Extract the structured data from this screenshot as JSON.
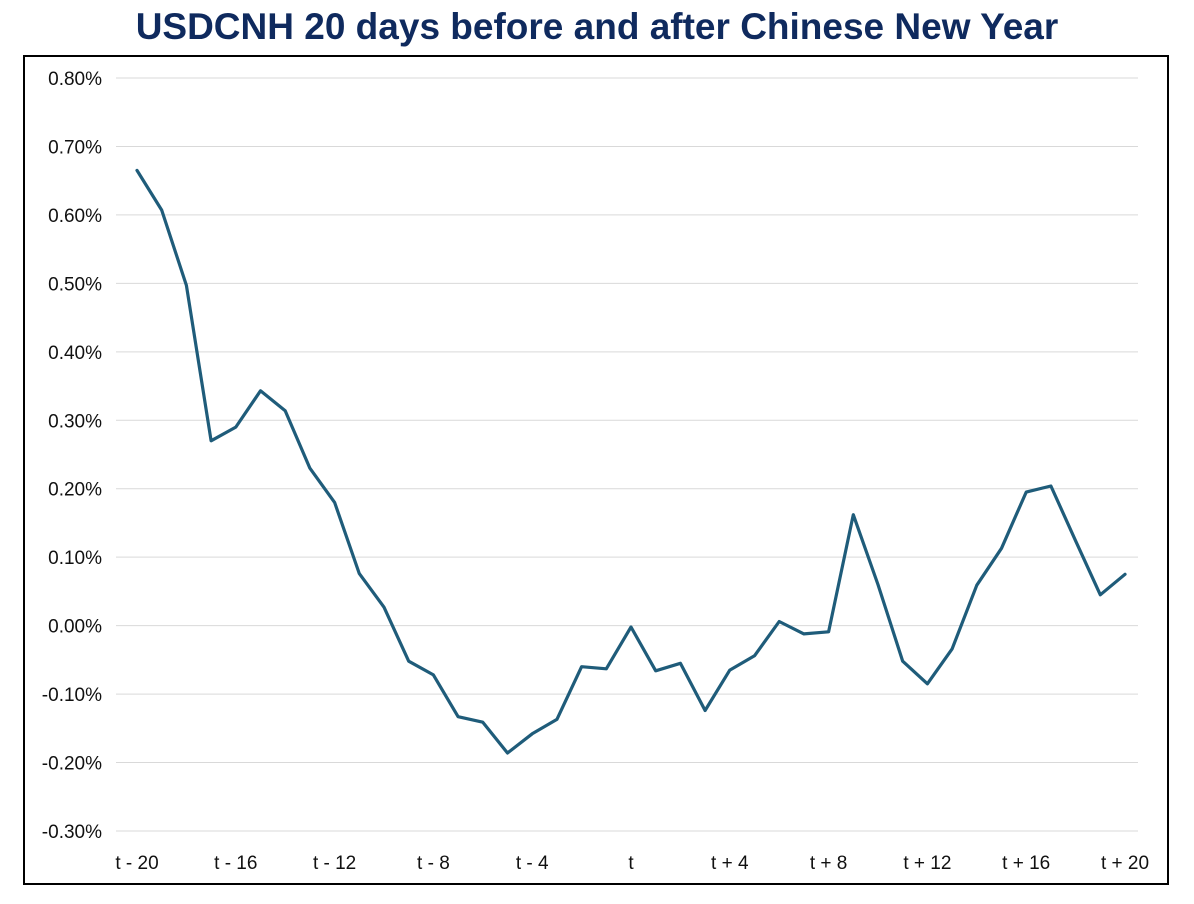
{
  "chart_data": {
    "type": "line",
    "title": "USDCNH 20 days before and after Chinese New Year",
    "xlabel": "",
    "ylabel": "",
    "ylim": [
      -0.003,
      0.008
    ],
    "grid": true,
    "legend": "none",
    "line_color": "#1f5c7a",
    "x_tick_labels": [
      "t - 20",
      "t - 16",
      "t - 12",
      "t - 8",
      "t - 4",
      "t",
      "t + 4",
      "t + 8",
      "t + 12",
      "t + 16",
      "t + 20"
    ],
    "y_tick_labels": [
      "0.80%",
      "0.70%",
      "0.60%",
      "0.50%",
      "0.40%",
      "0.30%",
      "0.20%",
      "0.10%",
      "0.00%",
      "-0.10%",
      "-0.20%",
      "-0.30%"
    ],
    "y_tick_values": [
      0.008,
      0.007,
      0.006,
      0.005,
      0.004,
      0.003,
      0.002,
      0.001,
      0.0,
      -0.001,
      -0.002,
      -0.003
    ],
    "x": [
      -20,
      -19,
      -18,
      -17,
      -16,
      -15,
      -14,
      -13,
      -12,
      -11,
      -10,
      -9,
      -8,
      -7,
      -6,
      -5,
      -4,
      -3,
      -2,
      -1,
      0,
      1,
      2,
      3,
      4,
      5,
      6,
      7,
      8,
      9,
      10,
      11,
      12,
      13,
      14,
      15,
      16,
      17,
      18,
      19,
      20
    ],
    "series": [
      {
        "values": [
          0.00665,
          0.00607,
          0.00497,
          0.0027,
          0.0029,
          0.00343,
          0.00314,
          0.0023,
          0.0018,
          0.00076,
          0.00027,
          -0.00052,
          -0.00072,
          -0.00133,
          -0.00141,
          -0.00186,
          -0.00158,
          -0.00137,
          -0.0006,
          -0.00063,
          -2e-05,
          -0.00066,
          -0.00055,
          -0.00124,
          -0.00065,
          -0.00044,
          6e-05,
          -0.00012,
          -9e-05,
          0.00162,
          0.0006,
          -0.00052,
          -0.00085,
          -0.00034,
          0.00059,
          0.00113,
          0.00195,
          0.00204,
          0.00124,
          0.00045,
          0.00075
        ]
      }
    ]
  }
}
